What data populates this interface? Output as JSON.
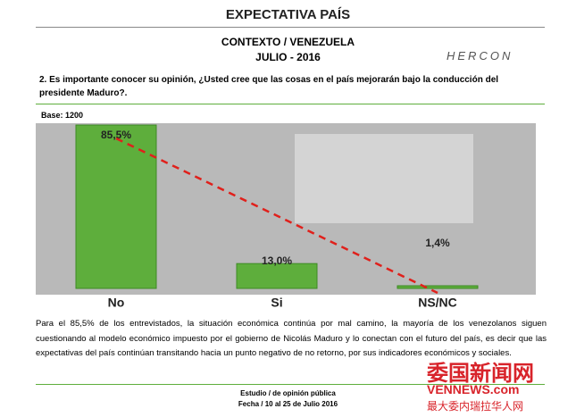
{
  "header": {
    "title": "EXPECTATIVA PAÍS",
    "subtitle": "CONTEXTO / VENEZUELA",
    "date": "JULIO - 2016",
    "logo": "HERCON"
  },
  "question": "2. Es importante conocer su  opinión, ¿Usted cree que las cosas en el país mejorarán bajo la conducción del presidente Maduro?.",
  "base": "Base: 1200",
  "chart_data": {
    "type": "bar",
    "categories": [
      "No",
      "Si",
      "NS/NC"
    ],
    "values": [
      85.5,
      13.0,
      1.4
    ],
    "value_labels": [
      "85,5%",
      "13,0%",
      "1,4%"
    ],
    "color": "#5eae3c",
    "trend_color": "#e0201b"
  },
  "body": "Para el 85,5% de los entrevistados, la situación económica continúa por mal camino, la mayoría de los venezolanos siguen cuestionando al modelo económico impuesto por el gobierno de Nicolás Maduro y lo conectan con el futuro del país, es decir que las expectativas del país continúan transitando hacia un punto negativo de no retorno, por sus indicadores económicos y sociales.",
  "footer": {
    "line1": "Estudio / de opinión pública",
    "line2": "Fecha / 10 al 25 de Julio 2016"
  },
  "watermark": {
    "name": "委国新闻网",
    "site": "VENNEWS.com",
    "slogan": "最大委内瑞拉华人网"
  }
}
